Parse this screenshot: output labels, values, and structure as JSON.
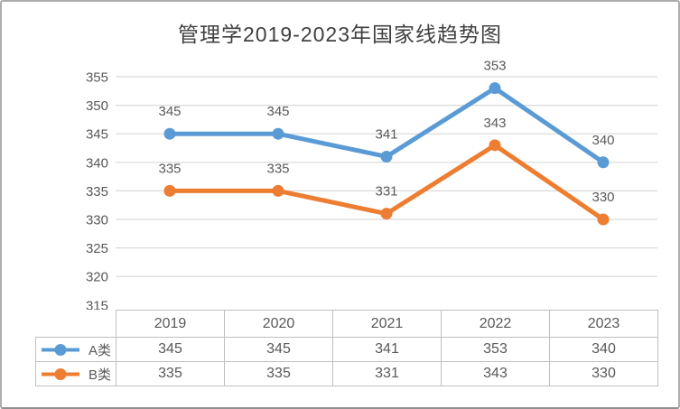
{
  "chart_data": {
    "type": "line",
    "title": "管理学2019-2023年国家线趋势图",
    "categories": [
      "2019",
      "2020",
      "2021",
      "2022",
      "2023"
    ],
    "series": [
      {
        "name": "A类",
        "color": "#5B9BD5",
        "values": [
          345,
          345,
          341,
          353,
          340
        ]
      },
      {
        "name": "B类",
        "color": "#ED7D31",
        "values": [
          335,
          335,
          331,
          343,
          330
        ]
      }
    ],
    "ylim": [
      315,
      355
    ],
    "ytick_step": 5,
    "yticks": [
      355,
      350,
      345,
      340,
      335,
      330,
      325,
      320,
      315
    ],
    "grid": true,
    "data_labels": true,
    "legend_position": "data-table-left",
    "marker": "circle",
    "colors": {
      "gridline": "#d9d9d9",
      "axis_text": "#595959",
      "data_label_text": "#595959",
      "title_text": "#404040",
      "table_border": "#c0c0c0",
      "frame_border": "#adadad"
    }
  }
}
